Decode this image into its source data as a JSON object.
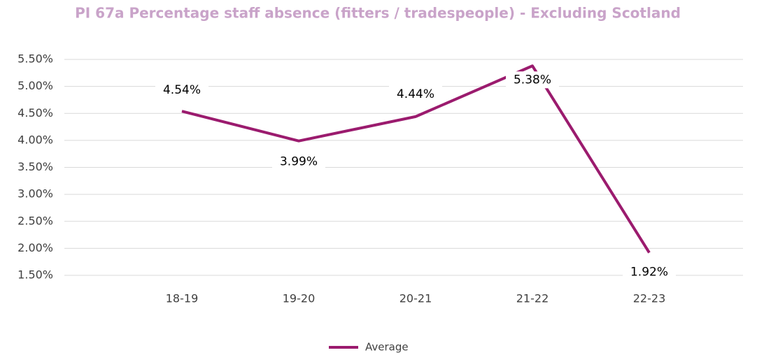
{
  "chart_data": {
    "type": "line",
    "title": "PI 67a Percentage staff absence (fitters / tradespeople) - Excluding Scotland",
    "categories": [
      "18-19",
      "19-20",
      "20-21",
      "21-22",
      "22-23"
    ],
    "series": [
      {
        "name": "Average",
        "color": "#9b1b6e",
        "values": [
          4.54,
          3.99,
          4.44,
          5.38,
          1.92
        ],
        "value_labels": [
          "4.54%",
          "3.99%",
          "4.44%",
          "5.38%",
          "1.92%"
        ]
      }
    ],
    "ylim": [
      1.5,
      5.5
    ],
    "yticks": [
      {
        "value": 1.5,
        "label": "1.50%"
      },
      {
        "value": 2.0,
        "label": "2.00%"
      },
      {
        "value": 2.5,
        "label": "2.50%"
      },
      {
        "value": 3.0,
        "label": "3.00%"
      },
      {
        "value": 3.5,
        "label": "3.50%"
      },
      {
        "value": 4.0,
        "label": "4.00%"
      },
      {
        "value": 4.5,
        "label": "4.50%"
      },
      {
        "value": 5.0,
        "label": "5.00%"
      },
      {
        "value": 5.5,
        "label": "5.50%"
      }
    ],
    "grid": true,
    "legend": "bottom"
  }
}
